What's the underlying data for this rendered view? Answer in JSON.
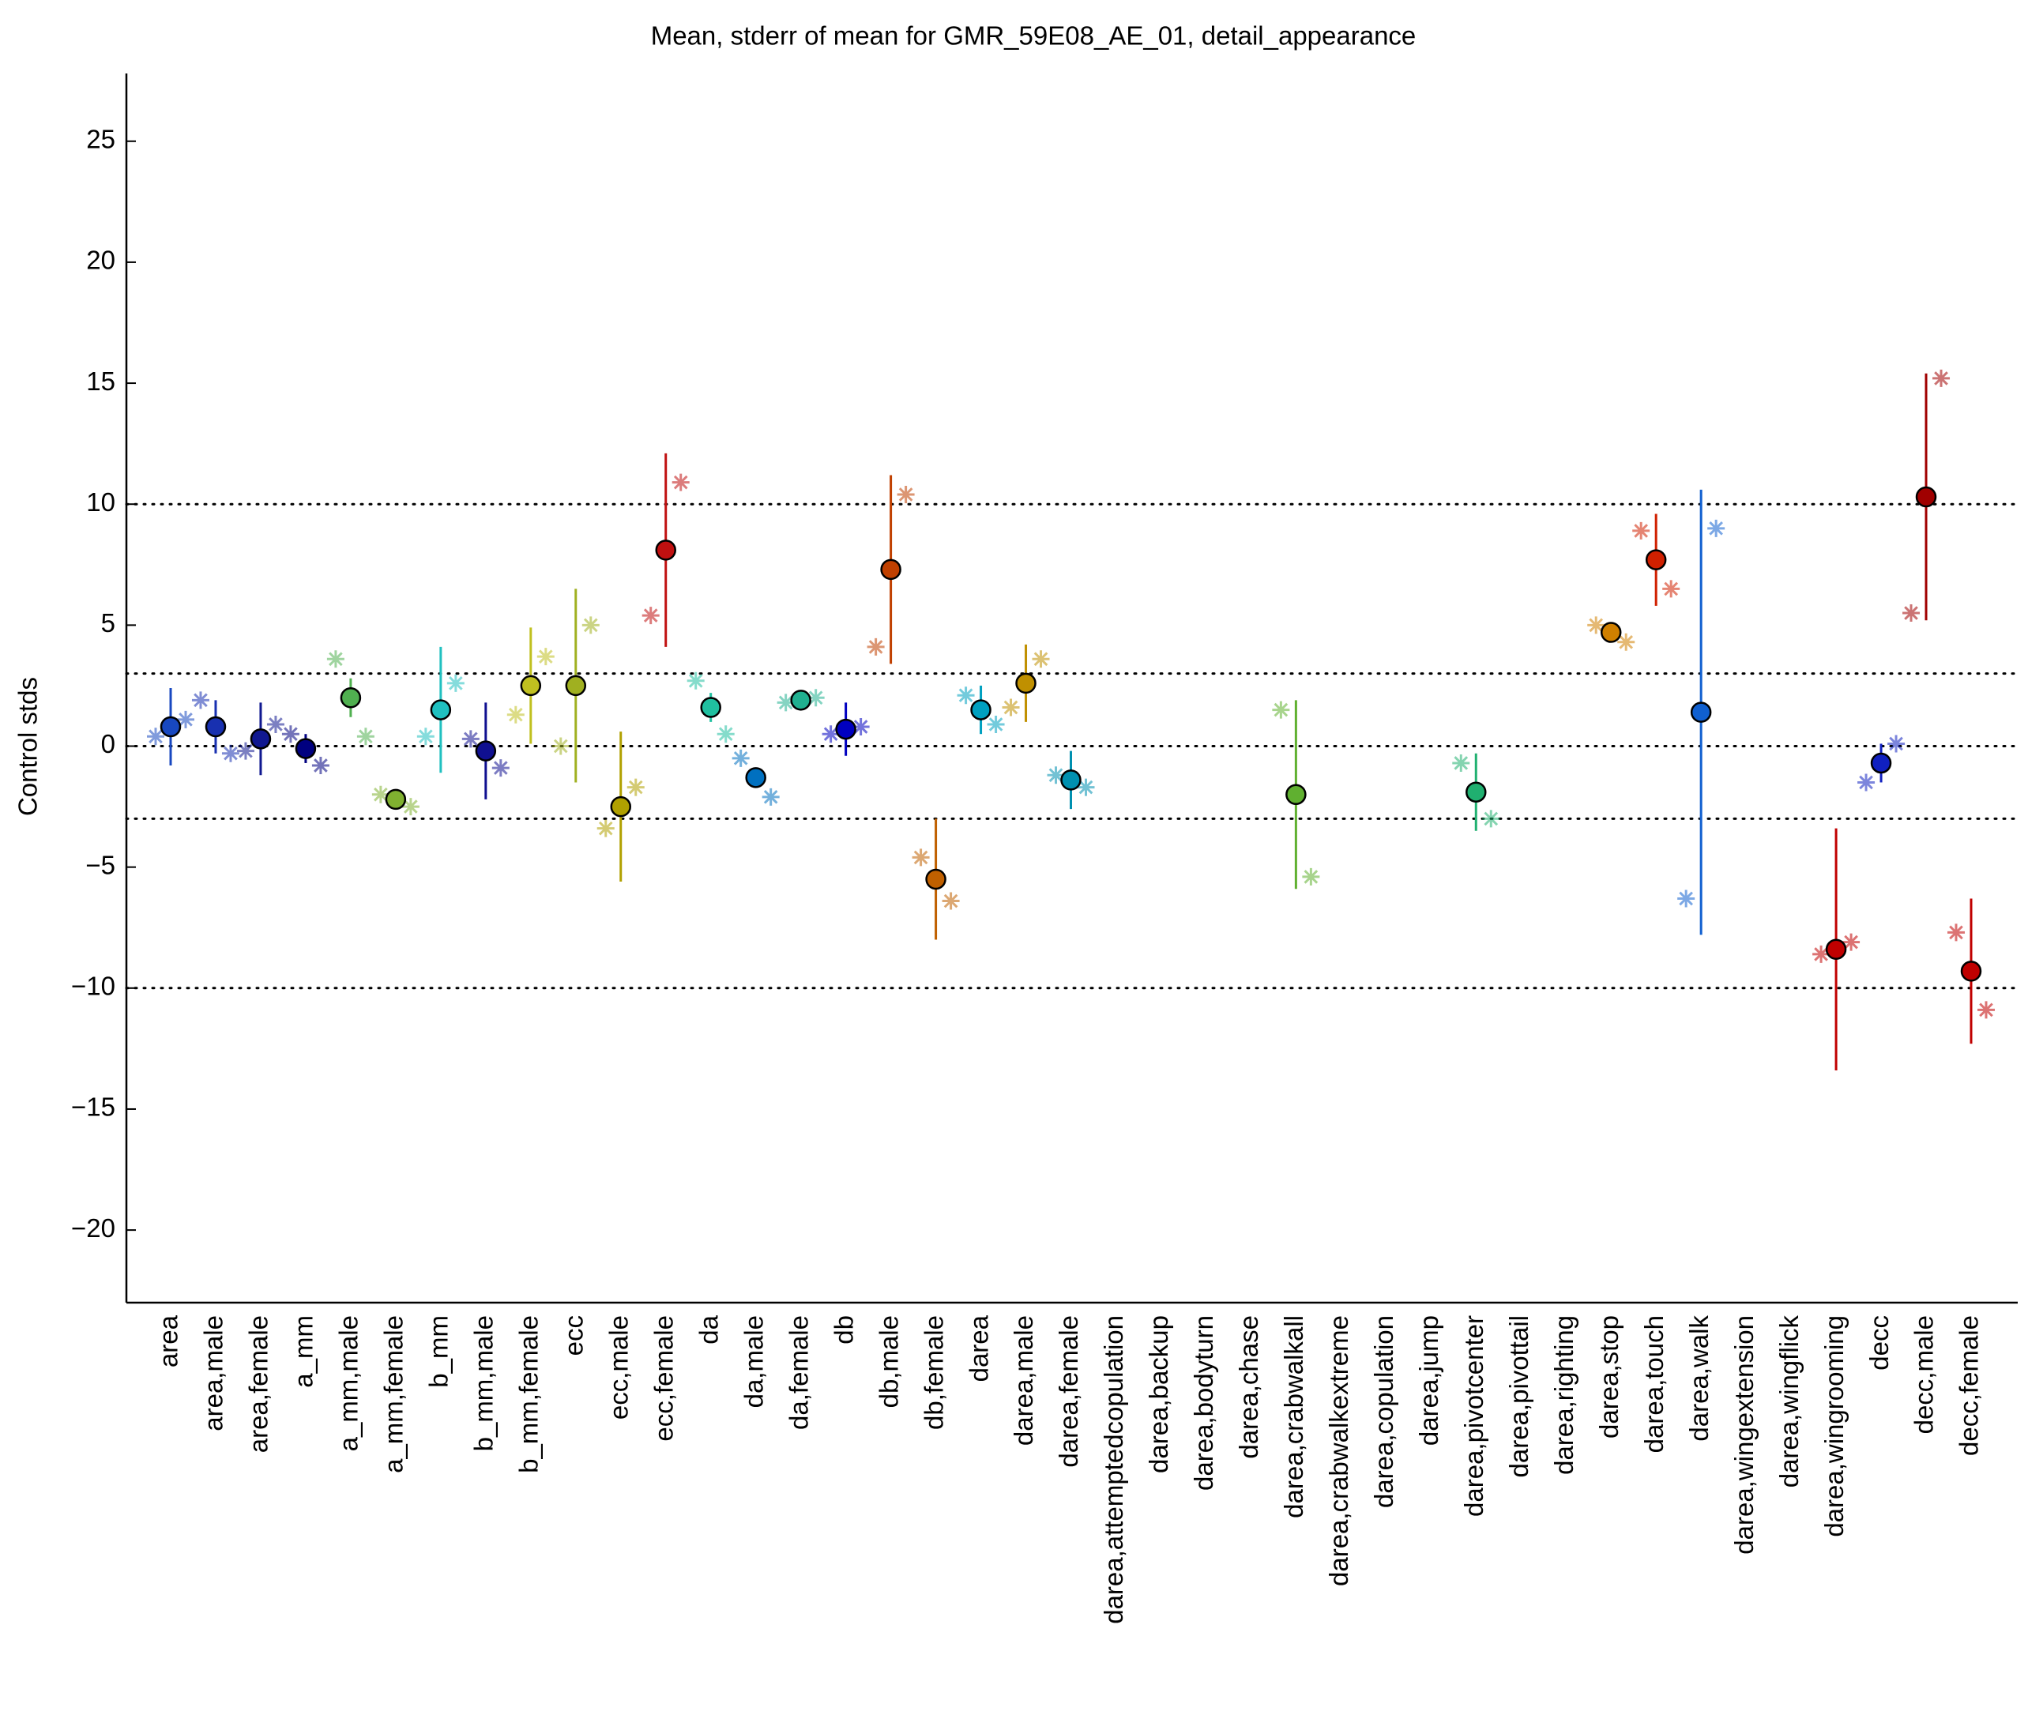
{
  "chart_data": {
    "type": "errorbar",
    "title": "Mean, stderr of mean for GMR_59E08_AE_01, detail_appearance",
    "ylabel": "Control stds",
    "categories": [
      "area",
      "area,male",
      "area,female",
      "a_mm",
      "a_mm,male",
      "a_mm,female",
      "b_mm",
      "b_mm,male",
      "b_mm,female",
      "ecc",
      "ecc,male",
      "ecc,female",
      "da",
      "da,male",
      "da,female",
      "db",
      "db,male",
      "db,female",
      "darea",
      "darea,male",
      "darea,female",
      "darea,attemptedcopulation",
      "darea,backup",
      "darea,bodyturn",
      "darea,chase",
      "darea,crabwalkall",
      "darea,crabwalkextreme",
      "darea,copulation",
      "darea,jump",
      "darea,pivotcenter",
      "darea,pivottail",
      "darea,righting",
      "darea,stop",
      "darea,touch",
      "darea,walk",
      "darea,wingextension",
      "darea,wingflick",
      "darea,wingrooming",
      "decc",
      "decc,male",
      "decc,female"
    ],
    "values": [
      0.8,
      0.8,
      0.3,
      -0.1,
      2.0,
      -2.2,
      1.5,
      -0.2,
      2.5,
      2.5,
      -2.5,
      8.1,
      1.6,
      -1.3,
      1.9,
      0.7,
      7.3,
      -5.5,
      1.5,
      2.6,
      -1.4,
      null,
      null,
      null,
      null,
      -2.0,
      null,
      null,
      null,
      -1.9,
      null,
      null,
      4.7,
      7.7,
      1.4,
      null,
      null,
      -8.4,
      -0.7,
      10.3,
      -9.3
    ],
    "errors": [
      1.6,
      1.1,
      1.5,
      0.6,
      0.8,
      0.3,
      2.6,
      2.0,
      2.4,
      4.0,
      3.1,
      4.0,
      0.6,
      0.4,
      0.3,
      1.1,
      3.9,
      2.5,
      1.0,
      1.6,
      1.2,
      null,
      null,
      null,
      null,
      3.9,
      null,
      null,
      null,
      1.6,
      null,
      null,
      0.2,
      1.9,
      9.2,
      null,
      null,
      5.0,
      0.8,
      5.1,
      3.0
    ],
    "star_left": [
      0.4,
      1.9,
      -0.2,
      0.5,
      3.6,
      -2.0,
      0.4,
      0.3,
      1.3,
      0.0,
      -3.4,
      5.4,
      2.7,
      -0.5,
      1.8,
      0.5,
      4.1,
      -4.6,
      2.1,
      1.6,
      -1.2,
      null,
      null,
      null,
      null,
      1.5,
      null,
      null,
      null,
      -0.7,
      null,
      null,
      5.0,
      8.9,
      -6.3,
      null,
      null,
      -8.6,
      -1.5,
      5.5,
      -7.7
    ],
    "star_right": [
      1.1,
      -0.3,
      0.9,
      -0.8,
      0.4,
      -2.5,
      2.6,
      -0.9,
      3.7,
      5.0,
      -1.7,
      10.9,
      0.5,
      -2.1,
      2.0,
      0.8,
      10.4,
      -6.4,
      0.9,
      3.6,
      -1.7,
      null,
      null,
      null,
      null,
      -5.4,
      null,
      null,
      null,
      -3.0,
      null,
      null,
      4.3,
      6.5,
      9.0,
      null,
      null,
      -8.1,
      0.1,
      15.2,
      -10.9
    ],
    "colors": [
      "#1848c0",
      "#1830b0",
      "#101890",
      "#000080",
      "#50b050",
      "#80b030",
      "#20c0c0",
      "#101090",
      "#c0c020",
      "#a0b020",
      "#b0a000",
      "#c01010",
      "#20c0a0",
      "#0070c0",
      "#20b090",
      "#0000c0",
      "#c04000",
      "#c06000",
      "#00a0c0",
      "#c09000",
      "#0090b0",
      "#888888",
      "#888888",
      "#888888",
      "#888888",
      "#60b030",
      "#888888",
      "#888888",
      "#888888",
      "#20b070",
      "#888888",
      "#888888",
      "#d08000",
      "#d02000",
      "#1060d0",
      "#888888",
      "#888888",
      "#c00000",
      "#1020c0",
      "#a00000",
      "#c00000"
    ],
    "ylim": [
      -23,
      27.8
    ],
    "yticks": [
      {
        "value": -20,
        "label": "−20"
      },
      {
        "value": -15,
        "label": "−15"
      },
      {
        "value": -10,
        "label": "−10"
      },
      {
        "value": -5,
        "label": "−5"
      },
      0,
      5,
      10,
      15,
      20,
      25
    ],
    "hlines": [
      10,
      3,
      0,
      -3,
      -10
    ]
  }
}
